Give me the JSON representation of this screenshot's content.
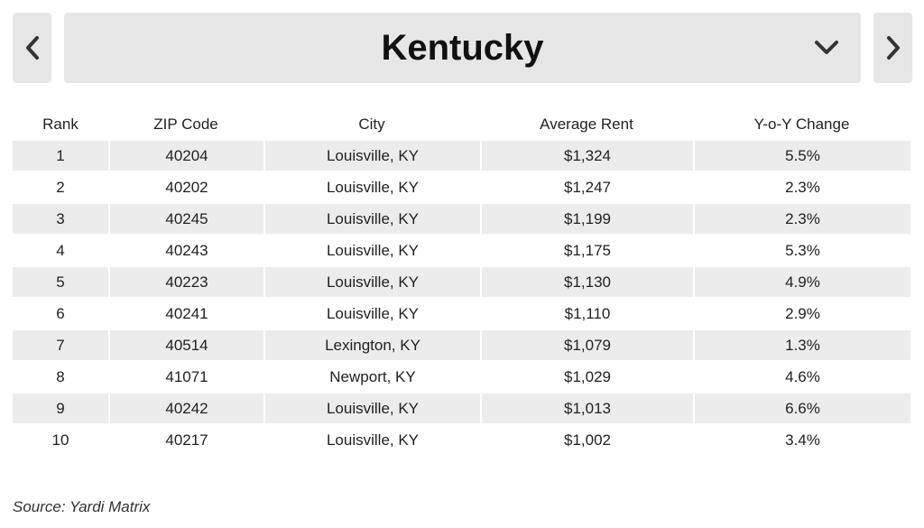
{
  "header": {
    "state": "Kentucky",
    "prev_icon": "chevron-left-icon",
    "next_icon": "chevron-right-icon",
    "dropdown_icon": "chevron-down-icon"
  },
  "table": {
    "columns": [
      "Rank",
      "ZIP Code",
      "City",
      "Average Rent",
      "Y-o-Y Change"
    ],
    "rows": [
      {
        "rank": "1",
        "zip": "40204",
        "city": "Louisville, KY",
        "rent": "$1,324",
        "change": "5.5%"
      },
      {
        "rank": "2",
        "zip": "40202",
        "city": "Louisville, KY",
        "rent": "$1,247",
        "change": "2.3%"
      },
      {
        "rank": "3",
        "zip": "40245",
        "city": "Louisville, KY",
        "rent": "$1,199",
        "change": "2.3%"
      },
      {
        "rank": "4",
        "zip": "40243",
        "city": "Louisville, KY",
        "rent": "$1,175",
        "change": "5.3%"
      },
      {
        "rank": "5",
        "zip": "40223",
        "city": "Louisville, KY",
        "rent": "$1,130",
        "change": "4.9%"
      },
      {
        "rank": "6",
        "zip": "40241",
        "city": "Louisville, KY",
        "rent": "$1,110",
        "change": "2.9%"
      },
      {
        "rank": "7",
        "zip": "40514",
        "city": "Lexington, KY",
        "rent": "$1,079",
        "change": "1.3%"
      },
      {
        "rank": "8",
        "zip": "41071",
        "city": "Newport, KY",
        "rent": "$1,029",
        "change": "4.6%"
      },
      {
        "rank": "9",
        "zip": "40242",
        "city": "Louisville, KY",
        "rent": "$1,013",
        "change": "6.6%"
      },
      {
        "rank": "10",
        "zip": "40217",
        "city": "Louisville, KY",
        "rent": "$1,002",
        "change": "3.4%"
      }
    ]
  },
  "footer": {
    "source": "Source: Yardi Matrix"
  },
  "colors": {
    "control_background": "#e6e6e6",
    "row_shade": "#ececec",
    "text": "#111111"
  }
}
